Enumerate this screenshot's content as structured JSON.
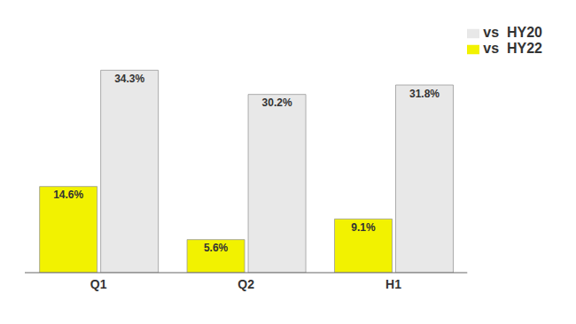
{
  "chart_data": {
    "type": "bar",
    "categories": [
      "Q1",
      "Q2",
      "H1"
    ],
    "series": [
      {
        "name": "vs  HY22",
        "color": "#f2f200",
        "values": [
          14.6,
          5.6,
          9.1
        ],
        "value_labels": [
          "14.6%",
          "5.6%",
          "9.1%"
        ]
      },
      {
        "name": "vs  HY20",
        "color": "#e8e8e8",
        "values": [
          34.3,
          30.2,
          31.8
        ],
        "value_labels": [
          "34.3%",
          "30.2%",
          "31.8%"
        ]
      }
    ],
    "ylim": [
      0,
      42
    ],
    "data_labels": true,
    "tick_labels": "x",
    "legend": "upper right"
  }
}
